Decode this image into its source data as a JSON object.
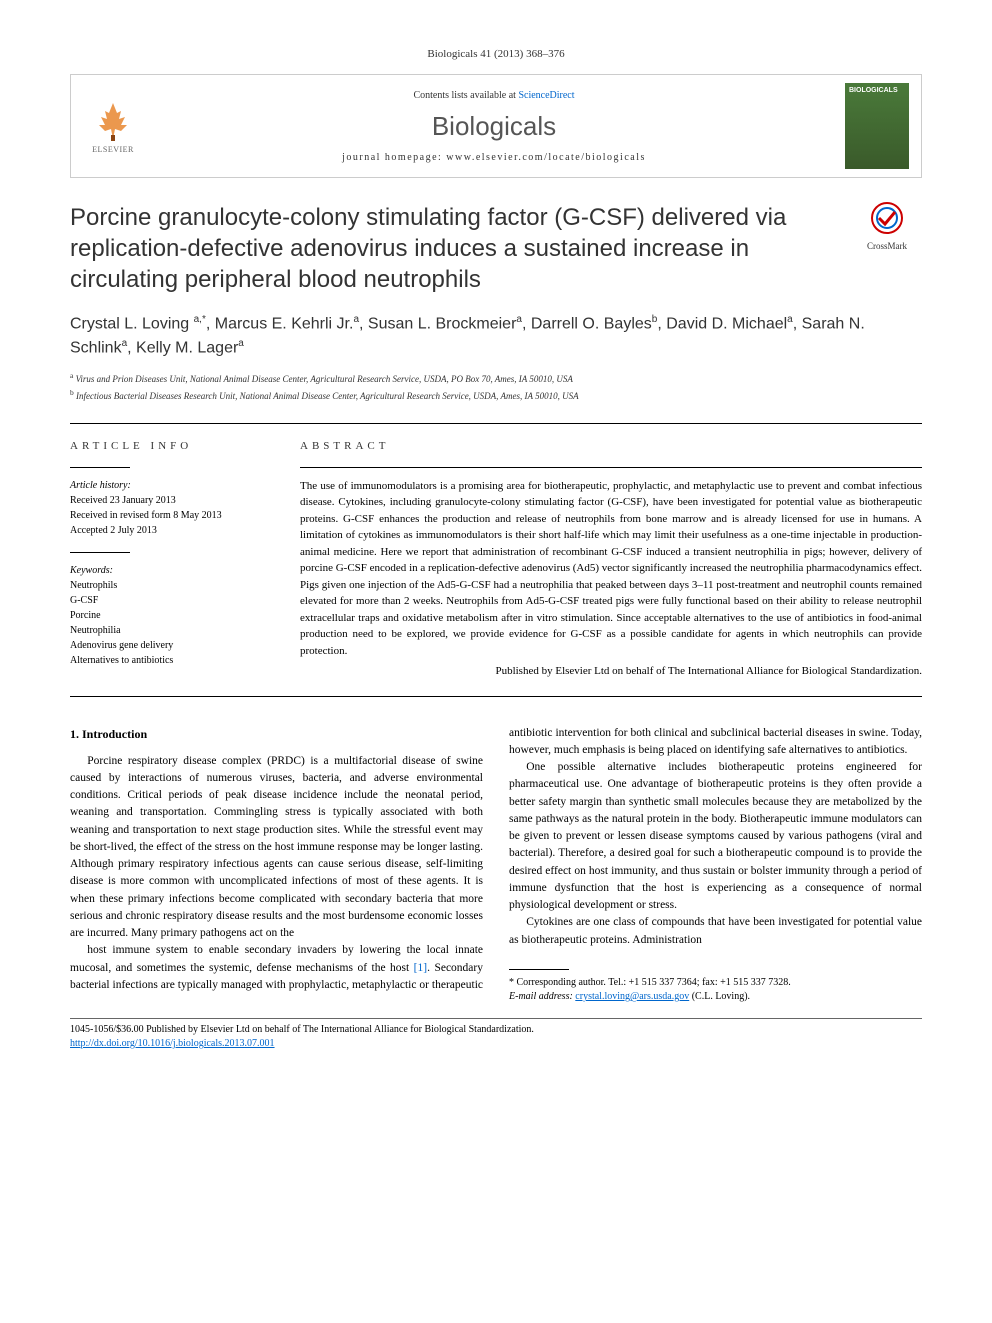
{
  "citation": "Biologicals 41 (2013) 368–376",
  "header": {
    "contents_prefix": "Contents lists available at ",
    "contents_link": "ScienceDirect",
    "journal_name": "Biologicals",
    "homepage_prefix": "journal homepage: ",
    "homepage_url": "www.elsevier.com/locate/biologicals",
    "publisher": "ELSEVIER",
    "cover_text": "BIOLOGICALS"
  },
  "crossmark": {
    "label": "CrossMark"
  },
  "title": "Porcine granulocyte-colony stimulating factor (G-CSF) delivered via replication-defective adenovirus induces a sustained increase in circulating peripheral blood neutrophils",
  "authors_html": "Crystal L. Loving <sup>a,*</sup>, Marcus E. Kehrli Jr.<sup>a</sup>, Susan L. Brockmeier<sup>a</sup>, Darrell O. Bayles<sup>b</sup>, David D. Michael<sup>a</sup>, Sarah N. Schlink<sup>a</sup>, Kelly M. Lager<sup>a</sup>",
  "affiliations": {
    "a": "Virus and Prion Diseases Unit, National Animal Disease Center, Agricultural Research Service, USDA, PO Box 70, Ames, IA 50010, USA",
    "b": "Infectious Bacterial Diseases Research Unit, National Animal Disease Center, Agricultural Research Service, USDA, Ames, IA 50010, USA"
  },
  "article_info": {
    "heading": "ARTICLE INFO",
    "history_label": "Article history:",
    "received": "Received 23 January 2013",
    "revised": "Received in revised form 8 May 2013",
    "accepted": "Accepted 2 July 2013",
    "keywords_label": "Keywords:",
    "keywords": [
      "Neutrophils",
      "G-CSF",
      "Porcine",
      "Neutrophilia",
      "Adenovirus gene delivery",
      "Alternatives to antibiotics"
    ]
  },
  "abstract": {
    "heading": "ABSTRACT",
    "text": "The use of immunomodulators is a promising area for biotherapeutic, prophylactic, and metaphylactic use to prevent and combat infectious disease. Cytokines, including granulocyte-colony stimulating factor (G-CSF), have been investigated for potential value as biotherapeutic proteins. G-CSF enhances the production and release of neutrophils from bone marrow and is already licensed for use in humans. A limitation of cytokines as immunomodulators is their short half-life which may limit their usefulness as a one-time injectable in production-animal medicine. Here we report that administration of recombinant G-CSF induced a transient neutrophilia in pigs; however, delivery of porcine G-CSF encoded in a replication-defective adenovirus (Ad5) vector significantly increased the neutrophilia pharmacodynamics effect. Pigs given one injection of the Ad5-G-CSF had a neutrophilia that peaked between days 3–11 post-treatment and neutrophil counts remained elevated for more than 2 weeks. Neutrophils from Ad5-G-CSF treated pigs were fully functional based on their ability to release neutrophil extracellular traps and oxidative metabolism after in vitro stimulation. Since acceptable alternatives to the use of antibiotics in food-animal production need to be explored, we provide evidence for G-CSF as a possible candidate for agents in which neutrophils can provide protection.",
    "copyright": "Published by Elsevier Ltd on behalf of The International Alliance for Biological Standardization."
  },
  "body": {
    "section1_heading": "1. Introduction",
    "p1": "Porcine respiratory disease complex (PRDC) is a multifactorial disease of swine caused by interactions of numerous viruses, bacteria, and adverse environmental conditions. Critical periods of peak disease incidence include the neonatal period, weaning and transportation. Commingling stress is typically associated with both weaning and transportation to next stage production sites. While the stressful event may be short-lived, the effect of the stress on the host immune response may be longer lasting. Although primary respiratory infectious agents can cause serious disease, self-limiting disease is more common with uncomplicated infections of most of these agents. It is when these primary infections become complicated with secondary bacteria that more serious and chronic respiratory disease results and the most burdensome economic losses are incurred. Many primary pathogens act on the",
    "p1b": "host immune system to enable secondary invaders by lowering the local innate mucosal, and sometimes the systemic, defense mechanisms of the host [1]. Secondary bacterial infections are typically managed with prophylactic, metaphylactic or therapeutic antibiotic intervention for both clinical and subclinical bacterial diseases in swine. Today, however, much emphasis is being placed on identifying safe alternatives to antibiotics.",
    "p2": "One possible alternative includes biotherapeutic proteins engineered for pharmaceutical use. One advantage of biotherapeutic proteins is they often provide a better safety margin than synthetic small molecules because they are metabolized by the same pathways as the natural protein in the body. Biotherapeutic immune modulators can be given to prevent or lessen disease symptoms caused by various pathogens (viral and bacterial). Therefore, a desired goal for such a biotherapeutic compound is to provide the desired effect on host immunity, and thus sustain or bolster immunity through a period of immune dysfunction that the host is experiencing as a consequence of normal physiological development or stress.",
    "p3": "Cytokines are one class of compounds that have been investigated for potential value as biotherapeutic proteins. Administration"
  },
  "corresponding": {
    "label": "* Corresponding author. Tel.: +1 515 337 7364; fax: +1 515 337 7328.",
    "email_label": "E-mail address: ",
    "email": "crystal.loving@ars.usda.gov",
    "email_suffix": " (C.L. Loving)."
  },
  "footer": {
    "issn": "1045-1056/$36.00 Published by Elsevier Ltd on behalf of The International Alliance for Biological Standardization.",
    "doi": "http://dx.doi.org/10.1016/j.biologicals.2013.07.001"
  },
  "colors": {
    "link": "#0066cc",
    "text": "#000000",
    "muted": "#333333",
    "cover_bg": "#4a7a3a"
  }
}
